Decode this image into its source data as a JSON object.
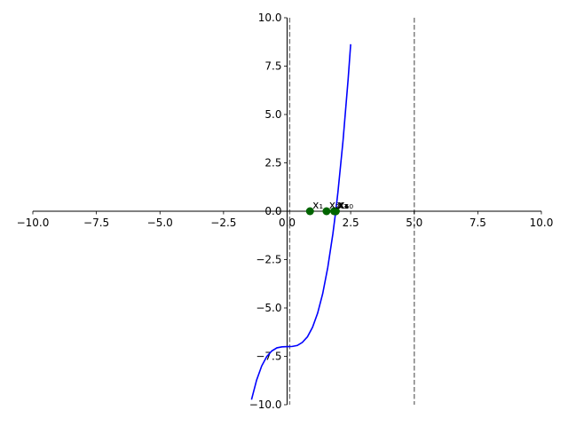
{
  "chart_data": {
    "type": "line",
    "title": "",
    "xlabel": "",
    "ylabel": "",
    "xlim": [
      -10,
      10
    ],
    "ylim": [
      -10,
      10
    ],
    "grid": false,
    "spines": "centered-at-origin",
    "x_ticks": [
      "−10.0",
      "−7.5",
      "−5.0",
      "−2.5",
      "0.0",
      "2.5",
      "5.0",
      "7.5",
      "10.0"
    ],
    "x_tick_values": [
      -10,
      -7.5,
      -5,
      -2.5,
      0,
      2.5,
      5,
      7.5,
      10
    ],
    "y_ticks": [
      "−10.0",
      "−7.5",
      "−5.0",
      "−2.5",
      "0.0",
      "2.5",
      "5.0",
      "7.5",
      "10.0"
    ],
    "y_tick_values": [
      -10,
      -7.5,
      -5,
      -2.5,
      0,
      2.5,
      5,
      7.5,
      10
    ],
    "series": [
      {
        "color": "#0000ff",
        "x": [
          -1.4,
          -1.2,
          -1.0,
          -0.8,
          -0.6,
          -0.4,
          -0.2,
          0.0,
          0.2,
          0.4,
          0.6,
          0.8,
          1.0,
          1.2,
          1.4,
          1.6,
          1.8,
          1.913,
          2.0,
          2.2,
          2.4,
          2.5
        ],
        "y": [
          -9.74,
          -8.73,
          -8.0,
          -7.51,
          -7.22,
          -7.06,
          -7.01,
          -7.0,
          -6.99,
          -6.94,
          -6.78,
          -6.49,
          -6.0,
          -5.27,
          -4.26,
          -2.9,
          -1.17,
          0.0,
          1.0,
          3.65,
          6.82,
          8.63
        ]
      }
    ],
    "vlines": [
      {
        "x": 0.1,
        "color": "#808080",
        "style": "dashed"
      },
      {
        "x": 5.0,
        "color": "#808080",
        "style": "dashed"
      }
    ],
    "points": {
      "color": "#006400",
      "labels": [
        "x₁",
        "x₂",
        "x₃",
        "x₄",
        "x₅",
        "x₆",
        "x₁₀"
      ],
      "x": [
        0.9,
        1.55,
        1.85,
        1.9,
        1.91,
        1.913,
        1.913
      ],
      "y": [
        0,
        0,
        0,
        0,
        0,
        0,
        0
      ]
    },
    "curve_color": "#0000ff",
    "axis_color": "#000000"
  }
}
